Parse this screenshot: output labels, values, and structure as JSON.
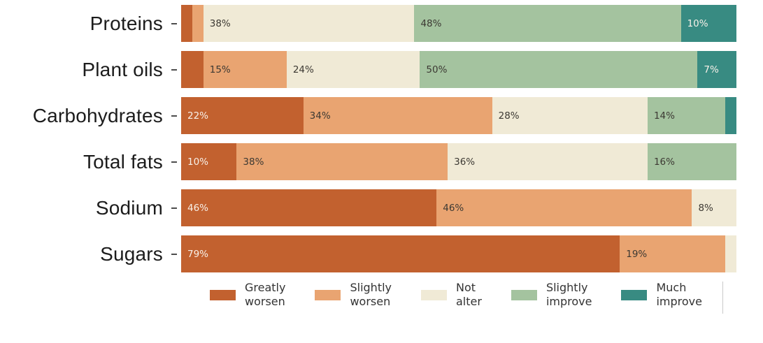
{
  "chart_data": {
    "type": "bar",
    "stacked": true,
    "orientation": "horizontal",
    "unit": "%",
    "xlim": [
      0,
      100
    ],
    "grid": false,
    "legend_position": "bottom",
    "value_label_min": 7,
    "categories": [
      "Proteins",
      "Plant oils",
      "Carbohydrates",
      "Total fats",
      "Sodium",
      "Sugars"
    ],
    "series": [
      {
        "name": "Greatly worsen",
        "color": "#c2612f",
        "text_color": "#f8f1e9",
        "values": [
          2,
          4,
          22,
          10,
          46,
          79
        ]
      },
      {
        "name": "Slightly worsen",
        "color": "#e9a471",
        "text_color": "#3c3933",
        "values": [
          2,
          15,
          34,
          38,
          46,
          19
        ]
      },
      {
        "name": "Not alter",
        "color": "#f0ead6",
        "text_color": "#3c3933",
        "values": [
          38,
          24,
          28,
          36,
          8,
          2
        ]
      },
      {
        "name": "Slightly improve",
        "color": "#a4c39f",
        "text_color": "#3c3933",
        "values": [
          48,
          50,
          14,
          16,
          0,
          0
        ]
      },
      {
        "name": "Much improve",
        "color": "#388b82",
        "text_color": "#f8f1e9",
        "values": [
          10,
          7,
          2,
          0,
          0,
          0
        ]
      }
    ]
  },
  "legend": {
    "items": [
      {
        "line1": "Greatly",
        "line2": "worsen",
        "color": "#c2612f"
      },
      {
        "line1": "Slightly",
        "line2": "worsen",
        "color": "#e9a471"
      },
      {
        "line1": "Not",
        "line2": "alter",
        "color": "#f0ead6"
      },
      {
        "line1": "Slightly",
        "line2": "improve",
        "color": "#a4c39f"
      },
      {
        "line1": "Much",
        "line2": "improve",
        "color": "#388b82"
      }
    ]
  }
}
